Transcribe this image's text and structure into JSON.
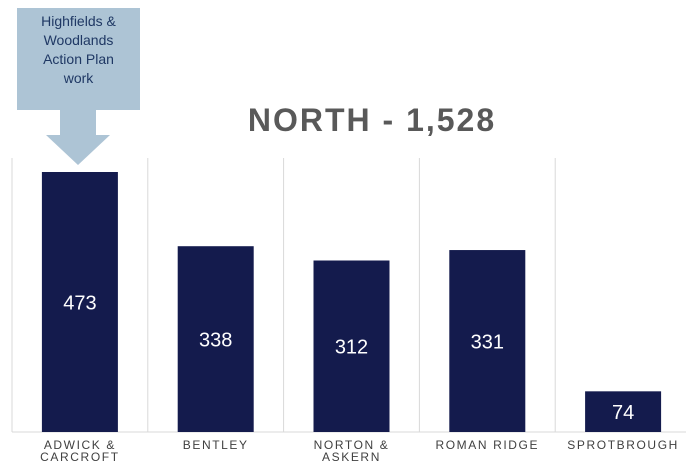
{
  "chart_data": {
    "type": "bar",
    "title": "NORTH - 1,528",
    "annotation": "Highfields & Woodlands Action Plan work",
    "categories": [
      "ADWICK & CARCROFT",
      "BENTLEY",
      "NORTON & ASKERN",
      "ROMAN RIDGE",
      "SPROTBROUGH"
    ],
    "values": [
      473,
      338,
      312,
      331,
      74
    ],
    "color": "#141b4d"
  }
}
